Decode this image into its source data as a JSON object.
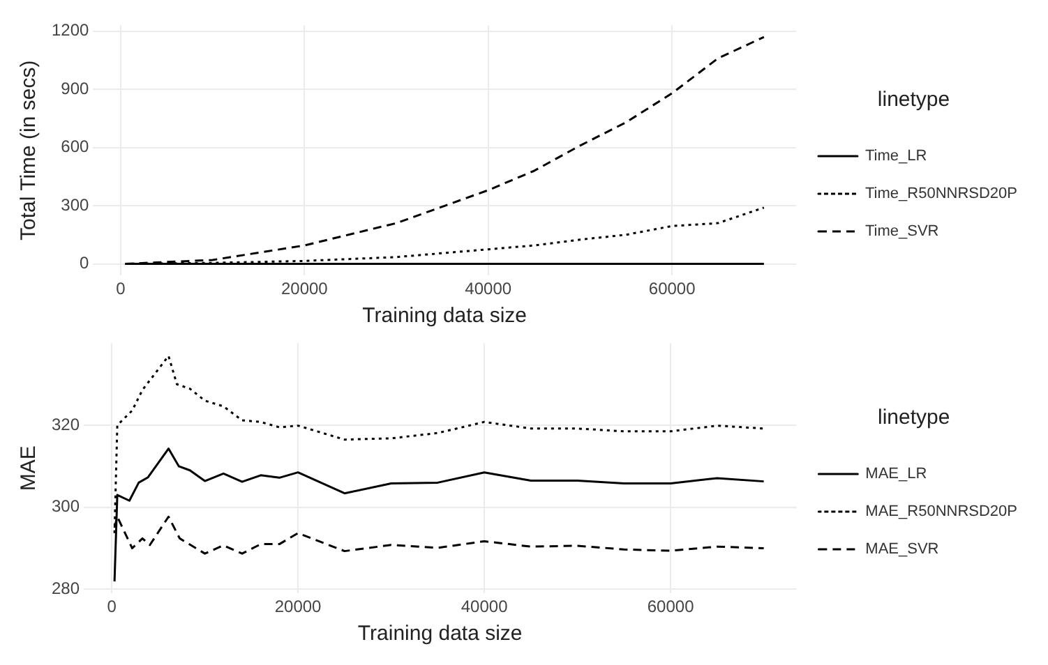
{
  "chart_data": [
    {
      "type": "line",
      "xlabel": "Training data size",
      "ylabel": "Total Time (in secs)",
      "legend_title": "linetype",
      "legend": "right",
      "grid": true,
      "x": [
        500,
        10000,
        20000,
        30000,
        40000,
        45000,
        50000,
        55000,
        60000,
        65000,
        70000
      ],
      "xlim": [
        -3000,
        73500
      ],
      "xticks": [
        0,
        20000,
        40000,
        60000
      ],
      "ylim": [
        -60,
        1230
      ],
      "yticks": [
        0,
        300,
        600,
        900,
        1200
      ],
      "series": [
        {
          "name": "Time_LR",
          "color": "#000000",
          "line_style": "solid",
          "values": [
            0,
            0,
            0,
            0,
            0,
            0,
            0,
            0,
            0,
            0,
            0
          ]
        },
        {
          "name": "Time_R50NNRSD20P",
          "color": "#000000",
          "line_style": "dotted",
          "values": [
            0,
            5,
            15,
            35,
            75,
            95,
            125,
            150,
            195,
            210,
            290
          ]
        },
        {
          "name": "Time_SVR",
          "color": "#000000",
          "line_style": "dashed",
          "values": [
            0,
            20,
            95,
            210,
            380,
            480,
            610,
            730,
            880,
            1060,
            1170
          ]
        }
      ]
    },
    {
      "type": "line",
      "xlabel": "Training data size",
      "ylabel": "MAE",
      "legend_title": "linetype",
      "legend": "right",
      "grid": true,
      "xlim": [
        -3000,
        73500
      ],
      "xticks": [
        0,
        20000,
        40000,
        60000
      ],
      "ylim": [
        279,
        340
      ],
      "yticks": [
        280,
        300,
        320
      ],
      "series": [
        {
          "name": "MAE_LR",
          "color": "#000000",
          "line_style": "solid",
          "x": [
            300,
            600,
            1900,
            2900,
            3900,
            6100,
            7200,
            8400,
            10000,
            12000,
            14000,
            16000,
            18000,
            20000,
            25000,
            30000,
            35000,
            40000,
            45000,
            50000,
            55000,
            60000,
            65000,
            70000
          ],
          "values": [
            281.9,
            303,
            301.6,
            306,
            307.3,
            314.3,
            310,
            309,
            306.4,
            308.2,
            306.2,
            307.8,
            307.2,
            308.5,
            303.4,
            305.8,
            306,
            308.5,
            306.5,
            306.5,
            305.8,
            305.8,
            307.1,
            306.3
          ]
        },
        {
          "name": "MAE_R50NNRSD20P",
          "color": "#000000",
          "line_style": "dotted",
          "x": [
            300,
            600,
            2200,
            3300,
            6100,
            7000,
            8400,
            10000,
            12000,
            14000,
            16000,
            18000,
            20000,
            25000,
            30000,
            35000,
            40000,
            45000,
            50000,
            55000,
            60000,
            65000,
            70000
          ],
          "values": [
            293.7,
            320,
            323.6,
            328.6,
            336.9,
            330,
            328.9,
            326,
            324.6,
            321.2,
            320.8,
            319.5,
            319.9,
            316.5,
            316.8,
            318.1,
            320.8,
            319.2,
            319.2,
            318.5,
            318.5,
            319.9,
            319.2
          ]
        },
        {
          "name": "MAE_SVR",
          "color": "#000000",
          "line_style": "dashed",
          "x": [
            300,
            600,
            2200,
            3300,
            4100,
            6100,
            7300,
            10000,
            12000,
            14000,
            16000,
            18000,
            20000,
            25000,
            30000,
            35000,
            40000,
            45000,
            50000,
            55000,
            60000,
            65000,
            70000
          ],
          "values": [
            295,
            297.7,
            290,
            292.4,
            290.8,
            297.7,
            292.4,
            288.7,
            290.7,
            288.7,
            291,
            291,
            293.7,
            289.3,
            290.8,
            290.1,
            291.7,
            290.4,
            290.6,
            289.7,
            289.4,
            290.4,
            290
          ]
        }
      ]
    }
  ]
}
